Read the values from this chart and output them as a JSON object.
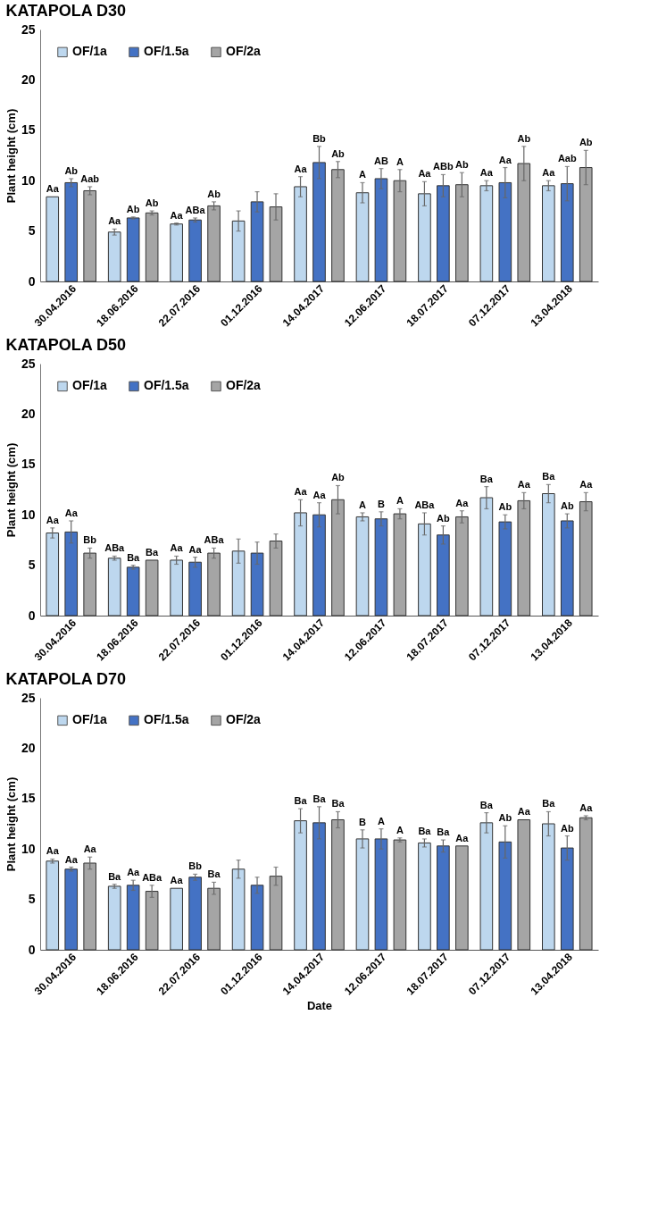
{
  "chart_data": [
    {
      "type": "bar",
      "title": "KATAPOLA D30",
      "ylabel": "Plant height (cm)",
      "categories": [
        "30.04.2016",
        "18.06.2016",
        "22.07.2016",
        "01.12.2016",
        "14.04.2017",
        "12.06.2017",
        "18.07.2017",
        "07.12.2017",
        "13.04.2018"
      ],
      "ylim": [
        0,
        25
      ],
      "yticks": [
        0,
        5,
        10,
        15,
        20,
        25
      ],
      "legend": "top left",
      "series": [
        {
          "name": "OF/1a",
          "color": "#bdd7ee",
          "values": [
            8.4,
            4.9,
            5.7,
            6.0,
            9.4,
            8.8,
            8.7,
            9.5,
            9.5
          ],
          "errors": [
            null,
            0.3,
            0.1,
            1.0,
            1.0,
            1.0,
            1.2,
            0.5,
            0.5
          ],
          "value_labels": [
            "Aa",
            "Aa",
            "Aa",
            null,
            "Aa",
            "A",
            "Aa",
            "Aa",
            "Aa"
          ]
        },
        {
          "name": "OF/1.5a",
          "color": "#4472c4",
          "values": [
            9.8,
            6.3,
            6.1,
            7.9,
            11.8,
            10.2,
            9.5,
            9.8,
            9.7
          ],
          "errors": [
            0.4,
            0.1,
            0.2,
            1.0,
            1.6,
            1.0,
            1.1,
            1.5,
            1.7
          ],
          "value_labels": [
            "Ab",
            "Ab",
            "ABa",
            null,
            "Bb",
            "AB",
            "ABb",
            "Aa",
            "Aab"
          ]
        },
        {
          "name": "OF/2a",
          "color": "#a5a5a5",
          "values": [
            9.0,
            6.8,
            7.5,
            7.4,
            11.1,
            10.0,
            9.6,
            11.7,
            11.3
          ],
          "errors": [
            0.4,
            0.2,
            0.4,
            1.3,
            0.8,
            1.1,
            1.2,
            1.7,
            1.7
          ],
          "value_labels": [
            "Aab",
            "Ab",
            "Ab",
            null,
            "Ab",
            "A",
            "Ab",
            "Ab",
            "Ab"
          ]
        }
      ]
    },
    {
      "type": "bar",
      "title": "KATAPOLA D50",
      "ylabel": "Plant height (cm)",
      "categories": [
        "30.04.2016",
        "18.06.2016",
        "22.07.2016",
        "01.12.2016",
        "14.04.2017",
        "12.06.2017",
        "18.07.2017",
        "07.12.2017",
        "13.04.2018"
      ],
      "ylim": [
        0,
        25
      ],
      "yticks": [
        0,
        5,
        10,
        15,
        20,
        25
      ],
      "legend": "top left",
      "series": [
        {
          "name": "OF/1a",
          "color": "#bdd7ee",
          "values": [
            8.2,
            5.7,
            5.5,
            6.4,
            10.2,
            9.8,
            9.1,
            11.7,
            12.1
          ],
          "errors": [
            0.5,
            0.2,
            0.4,
            1.2,
            1.3,
            0.4,
            1.1,
            1.1,
            0.9
          ],
          "value_labels": [
            "Aa",
            "ABa",
            "Aa",
            null,
            "Aa",
            "A",
            "ABa",
            "Ba",
            "Ba"
          ]
        },
        {
          "name": "OF/1.5a",
          "color": "#4472c4",
          "values": [
            8.3,
            4.8,
            5.3,
            6.2,
            10.0,
            9.6,
            8.0,
            9.3,
            9.4
          ],
          "errors": [
            1.1,
            0.2,
            0.5,
            1.1,
            1.2,
            0.7,
            0.9,
            0.7,
            0.7
          ],
          "value_labels": [
            "Aa",
            "Ba",
            "Aa",
            null,
            "Aa",
            "B",
            "Ab",
            "Ab",
            "Ab"
          ]
        },
        {
          "name": "OF/2a",
          "color": "#a5a5a5",
          "values": [
            6.2,
            5.5,
            6.2,
            7.4,
            11.5,
            10.1,
            9.8,
            11.4,
            11.3
          ],
          "errors": [
            0.5,
            null,
            0.5,
            0.7,
            1.4,
            0.5,
            0.6,
            0.8,
            0.9
          ],
          "value_labels": [
            "Bb",
            "Ba",
            "ABa",
            null,
            "Ab",
            "A",
            "Aa",
            "Aa",
            "Aa"
          ]
        }
      ]
    },
    {
      "type": "bar",
      "title": "KATAPOLA D70",
      "ylabel": "Plant height (cm)",
      "xlabel": "Date",
      "categories": [
        "30.04.2016",
        "18.06.2016",
        "22.07.2016",
        "01.12.2016",
        "14.04.2017",
        "12.06.2017",
        "18.07.2017",
        "07.12.2017",
        "13.04.2018"
      ],
      "ylim": [
        0,
        25
      ],
      "yticks": [
        0,
        5,
        10,
        15,
        20,
        25
      ],
      "legend": "top left",
      "series": [
        {
          "name": "OF/1a",
          "color": "#bdd7ee",
          "values": [
            8.8,
            6.3,
            6.1,
            8.0,
            12.8,
            11.0,
            10.6,
            12.6,
            12.5
          ],
          "errors": [
            0.2,
            0.2,
            null,
            0.9,
            1.2,
            0.9,
            0.4,
            1.0,
            1.2
          ],
          "value_labels": [
            "Aa",
            "Ba",
            "Aa",
            null,
            "Ba",
            "B",
            "Ba",
            "Ba",
            "Ba"
          ]
        },
        {
          "name": "OF/1.5a",
          "color": "#4472c4",
          "values": [
            8.0,
            6.4,
            7.2,
            6.4,
            12.6,
            11.0,
            10.3,
            10.7,
            10.1
          ],
          "errors": [
            0.2,
            0.5,
            0.3,
            0.8,
            1.6,
            1.0,
            0.6,
            1.6,
            1.2
          ],
          "value_labels": [
            "Aa",
            "Aa",
            "Bb",
            null,
            "Ba",
            "A",
            "Ba",
            "Ab",
            "Ab"
          ]
        },
        {
          "name": "OF/2a",
          "color": "#a5a5a5",
          "values": [
            8.6,
            5.8,
            6.1,
            7.3,
            12.9,
            10.9,
            10.3,
            12.9,
            13.1
          ],
          "errors": [
            0.6,
            0.6,
            0.6,
            0.9,
            0.8,
            0.2,
            null,
            null,
            0.2
          ],
          "value_labels": [
            "Aa",
            "ABa",
            "Ba",
            null,
            "Ba",
            "A",
            "Aa",
            "Aa",
            "Aa"
          ]
        }
      ]
    }
  ]
}
